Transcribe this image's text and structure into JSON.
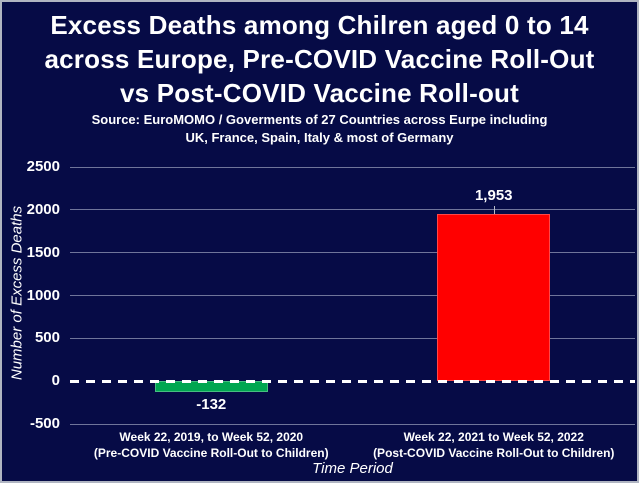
{
  "header": {
    "title_lines": [
      "Excess Deaths among Chilren aged 0 to 14",
      "across Europe, Pre-COVID Vaccine Roll-Out",
      "vs Post-COVID Vaccine Roll-out"
    ],
    "source_lines": [
      "Source: EuroMOMO / Goverments of 27 Countries across Eurpe including",
      "UK, France, Spain, Italy & most of Germany"
    ]
  },
  "chart_data": {
    "type": "bar",
    "title": "Excess Deaths among Chilren aged 0 to 14 across Europe, Pre-COVID Vaccine Roll-Out vs Post-COVID Vaccine Roll-out",
    "subtitle": "Source: EuroMOMO / Goverments of 27 Countries across Eurpe including UK, France, Spain, Italy & most of Germany",
    "categories": [
      [
        "Week 22, 2019, to Week 52, 2020",
        "(Pre-COVID Vaccine Roll-Out to Children)"
      ],
      [
        "Week 22, 2021 to Week 52, 2022",
        "(Post-COVID Vaccine Roll-Out to Children)"
      ]
    ],
    "values": [
      -132,
      1953
    ],
    "value_labels": [
      "-132",
      "1,953"
    ],
    "bar_colors": [
      "#00A651",
      "#FF0000"
    ],
    "ylabel": "Number of Excess Deaths",
    "xlabel": "Time Period",
    "yticks": [
      2500,
      2000,
      1500,
      1000,
      500,
      0,
      -500
    ],
    "ytick_labels": [
      "2500",
      "2000",
      "1500",
      "1000",
      "500",
      "0",
      "-500"
    ],
    "ylim": [
      -500,
      2500
    ],
    "grid": true,
    "zero_line_style": "dashed",
    "legend": "none"
  },
  "colors": {
    "background": "#060b46",
    "frame_border": "#b0b5c2",
    "text": "#ffffff",
    "gridline": "#a8afc8",
    "zero_line": "#ffffff",
    "pre_rollout_bar": "#00A651",
    "post_rollout_bar": "#FF0000"
  }
}
